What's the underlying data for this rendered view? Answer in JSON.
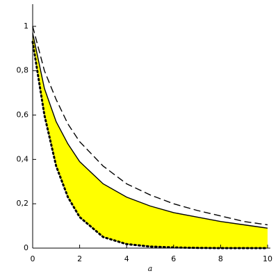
{
  "chart_data": {
    "type": "line",
    "xlabel": "a",
    "x": [
      0,
      0.5,
      1,
      1.5,
      2,
      3,
      4,
      5,
      6,
      7,
      8,
      9,
      10
    ],
    "series": [
      {
        "color": "#000000",
        "dash": "dashed",
        "values": [
          1,
          0.8,
          0.67,
          0.56,
          0.48,
          0.37,
          0.29,
          0.24,
          0.2,
          0.17,
          0.145,
          0.12,
          0.105
        ]
      },
      {
        "color": "#000000",
        "dash": "solid",
        "values": [
          0.97,
          0.72,
          0.57,
          0.47,
          0.39,
          0.29,
          0.23,
          0.19,
          0.16,
          0.14,
          0.12,
          0.105,
          0.09
        ]
      },
      {
        "color": "#000000",
        "dash": "dotted",
        "values": [
          0.93,
          0.6,
          0.37,
          0.23,
          0.14,
          0.05,
          0.018,
          0.007,
          0.003,
          0.001,
          0,
          0,
          0
        ]
      }
    ],
    "fill_between": [
      1,
      2
    ],
    "fill_color": "#ffff00",
    "xlim": [
      0,
      10
    ],
    "xticks": [
      0,
      2,
      4,
      6,
      8,
      10
    ],
    "ylim": [
      0,
      1.1
    ],
    "yticks": [
      0,
      {
        "value": 0.2,
        "label": "0,2"
      },
      {
        "value": 0.4,
        "label": "0,4"
      },
      {
        "value": 0.6,
        "label": "0,6"
      },
      {
        "value": 0.8,
        "label": "0,8"
      },
      1
    ]
  }
}
